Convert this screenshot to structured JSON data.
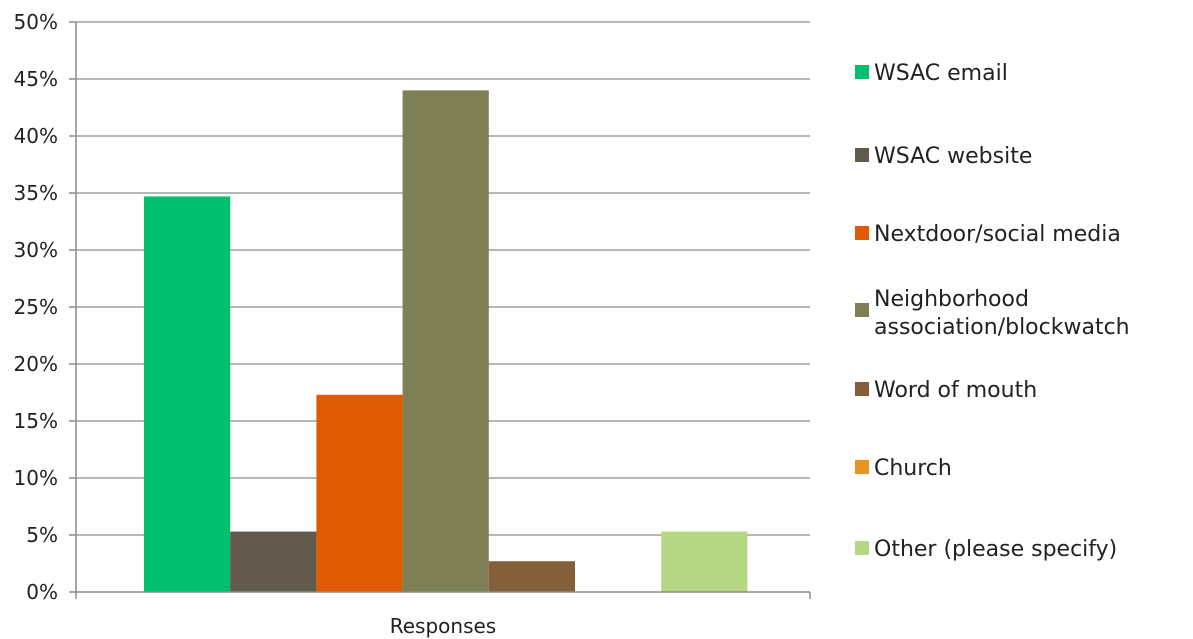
{
  "chart_data": {
    "type": "bar",
    "title": "",
    "xlabel": "Responses",
    "ylabel": "",
    "ylim": [
      0,
      0.5
    ],
    "yticks": [
      "0%",
      "5%",
      "10%",
      "15%",
      "20%",
      "25%",
      "30%",
      "35%",
      "40%",
      "45%",
      "50%"
    ],
    "categories": [
      "Responses"
    ],
    "grid": true,
    "legend_position": "right",
    "series": [
      {
        "name": "WSAC email",
        "values": [
          0.347
        ],
        "color": "#00BF6F"
      },
      {
        "name": "WSAC website",
        "values": [
          0.053
        ],
        "color": "#635A4E"
      },
      {
        "name": "Nextdoor/social media",
        "values": [
          0.173
        ],
        "color": "#E05A00"
      },
      {
        "name": "Neighborhood association/blockwatch",
        "values": [
          0.44
        ],
        "color": "#7F7F56"
      },
      {
        "name": "Word of mouth",
        "values": [
          0.027
        ],
        "color": "#855E3A"
      },
      {
        "name": "Church",
        "values": [
          0
        ],
        "color": "#E99422"
      },
      {
        "name": "Other (please specify)",
        "values": [
          0.053
        ],
        "color": "#B6D784"
      }
    ]
  }
}
